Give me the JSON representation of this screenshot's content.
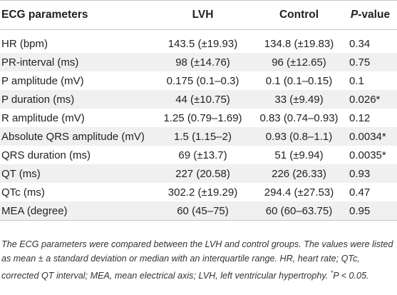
{
  "table": {
    "headers": {
      "param": "ECG parameters",
      "lvh": "LVH",
      "control": "Control",
      "p_italic": "P",
      "p_rest": "-value"
    },
    "rows": [
      {
        "param": "HR (bpm)",
        "lvh": "143.5 (±19.93)",
        "control": "134.8 (±19.83)",
        "p": "0.34"
      },
      {
        "param": "PR-interval (ms)",
        "lvh": "98 (±14.76)",
        "control": "96 (±12.65)",
        "p": "0.75"
      },
      {
        "param": "P amplitude (mV)",
        "lvh": "0.175 (0.1–0.3)",
        "control": "0.1 (0.1–0.15)",
        "p": "0.1"
      },
      {
        "param": "P duration (ms)",
        "lvh": "44 (±10.75)",
        "control": "33 (±9.49)",
        "p": "0.026*"
      },
      {
        "param": "R amplitude (mV)",
        "lvh": "1.25 (0.79–1.69)",
        "control": "0.83 (0.74–0.93)",
        "p": "0.12"
      },
      {
        "param": "Absolute QRS amplitude (mV)",
        "lvh": "1.5 (1.15–2)",
        "control": "0.93 (0.8–1.1)",
        "p": "0.0034*"
      },
      {
        "param": "QRS duration (ms)",
        "lvh": "69 (±13.7)",
        "control": "51 (±9.94)",
        "p": "0.0035*"
      },
      {
        "param": "QT (ms)",
        "lvh": "227 (20.58)",
        "control": "226 (26.33)",
        "p": "0.93"
      },
      {
        "param": "QTc (ms)",
        "lvh": "302.2 (±19.29)",
        "control": "294.4 (±27.53)",
        "p": "0.47"
      },
      {
        "param": "MEA (degree)",
        "lvh": "60 (45–75)",
        "control": "60 (60–63.75)",
        "p": "0.95"
      }
    ]
  },
  "footnote": {
    "text": "The ECG parameters were compared between the LVH and control groups. The values were listed as mean ± a standard deviation or median with an interquartile range. HR, heart rate; QTc, corrected QT interval; MEA, mean electrical axis; LVH, left ventricular hypertrophy.",
    "sig_star": "*",
    "sig_text": "P < 0.05."
  }
}
